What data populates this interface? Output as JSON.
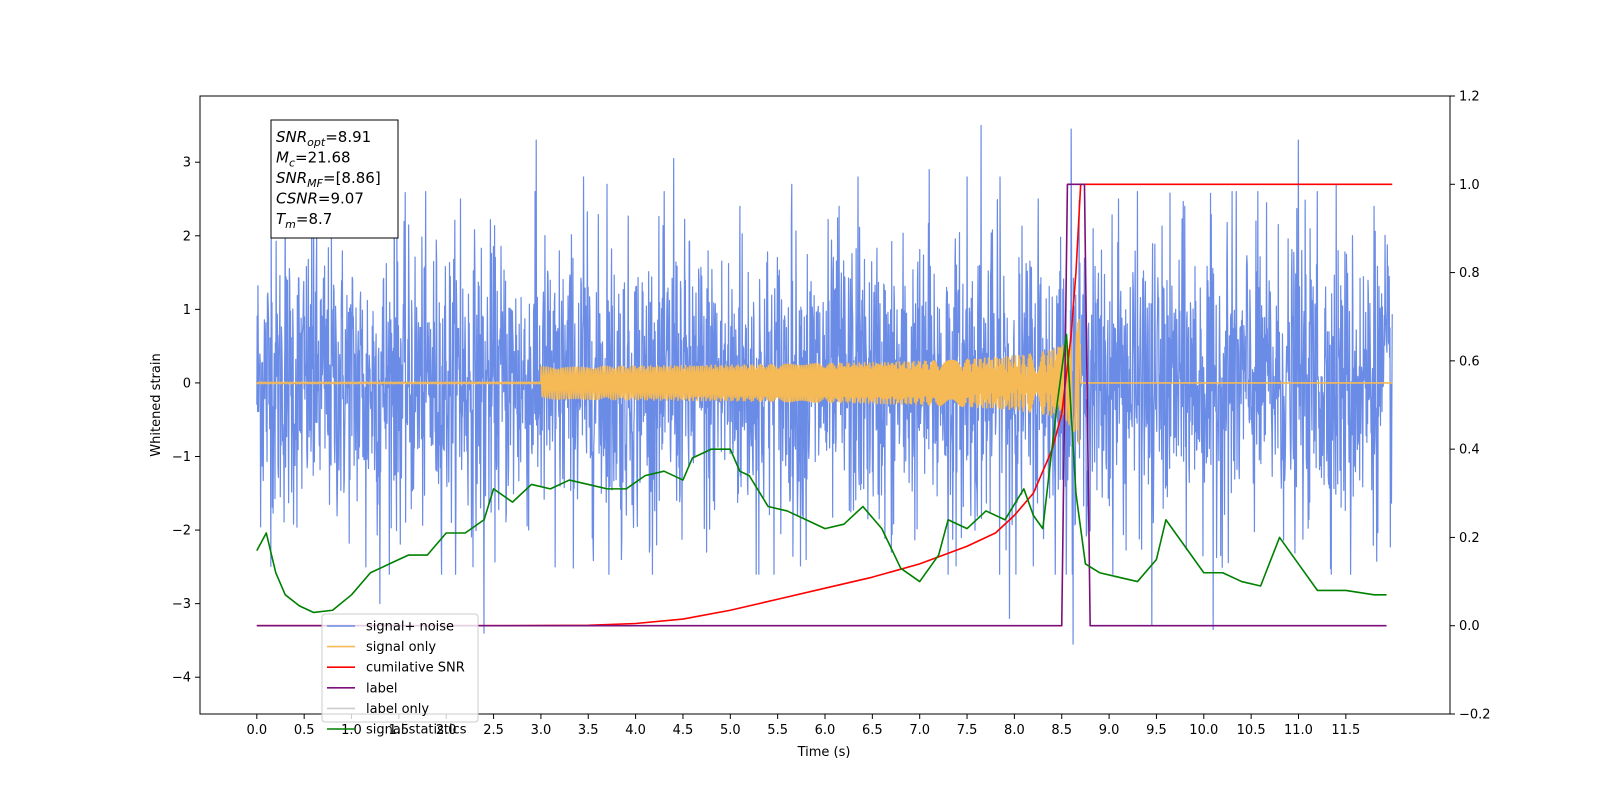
{
  "chart_data": {
    "type": "line",
    "xlabel": "Time (s)",
    "ylabel_left": "Whitened strain",
    "ylabel_right": "",
    "xlim": [
      -0.6,
      12.6
    ],
    "ylim_left": [
      -4.5,
      3.9
    ],
    "ylim_right": [
      -0.2,
      1.2
    ],
    "x_ticks": [
      0.0,
      0.5,
      1.0,
      1.5,
      2.0,
      2.5,
      3.0,
      3.5,
      4.0,
      4.5,
      5.0,
      5.5,
      6.0,
      6.5,
      7.0,
      7.5,
      8.0,
      8.5,
      9.0,
      9.5,
      10.0,
      10.5,
      11.0,
      11.5
    ],
    "x_tick_labels": [
      "0.0",
      "0.5",
      "1.0",
      "1.5",
      "2.0",
      "2.5",
      "3.0",
      "3.5",
      "4.0",
      "4.5",
      "5.0",
      "5.5",
      "6.0",
      "6.5",
      "7.0",
      "7.5",
      "8.0",
      "8.5",
      "9.0",
      "9.5",
      "10.0",
      "10.5",
      "11.0",
      "11.5"
    ],
    "y_ticks_left": [
      -4,
      -3,
      -2,
      -1,
      0,
      1,
      2,
      3
    ],
    "y_tick_labels_left": [
      "−4",
      "−3",
      "−2",
      "−1",
      "0",
      "1",
      "2",
      "3"
    ],
    "y_ticks_right": [
      -0.2,
      0.0,
      0.2,
      0.4,
      0.6,
      0.8,
      1.0,
      1.2
    ],
    "y_tick_labels_right": [
      "−0.2",
      "0.0",
      "0.2",
      "0.4",
      "0.6",
      "0.8",
      "1.0",
      "1.2"
    ],
    "grid": false,
    "legend_placement": "lower-left",
    "annotation": {
      "lines": [
        {
          "sym": "SNR",
          "sub": "opt",
          "val": "=8.91"
        },
        {
          "sym": "M",
          "sub": "c",
          "val": "=21.68"
        },
        {
          "sym": "SNR",
          "sub": "MF",
          "val": "=[8.86]"
        },
        {
          "sym": "CSNR",
          "sub": "",
          "val": "=9.07"
        },
        {
          "sym": "T",
          "sub": "m",
          "val": "=8.7"
        }
      ]
    },
    "series": [
      {
        "name": "signal+ noise",
        "color": "#6a8be6",
        "axis": "left",
        "kind": "noise",
        "x_range": [
          0.0,
          11.99
        ],
        "sigma": 0.95,
        "spikes": [
          [
            0.15,
            2.2
          ],
          [
            0.3,
            2.6
          ],
          [
            0.6,
            2.3
          ],
          [
            1.15,
            -2.5
          ],
          [
            1.3,
            -3.0
          ],
          [
            1.45,
            2.9
          ],
          [
            2.15,
            2.5
          ],
          [
            2.4,
            -3.4
          ],
          [
            2.95,
            3.3
          ],
          [
            3.15,
            -2.5
          ],
          [
            3.45,
            2.8
          ],
          [
            3.7,
            2.7
          ],
          [
            3.85,
            -2.4
          ],
          [
            4.15,
            -2.2
          ],
          [
            4.4,
            3.05
          ],
          [
            4.75,
            -2.3
          ],
          [
            5.1,
            2.4
          ],
          [
            5.3,
            -2.6
          ],
          [
            5.65,
            2.7
          ],
          [
            5.8,
            -2.4
          ],
          [
            6.15,
            2.4
          ],
          [
            6.35,
            2.8
          ],
          [
            6.7,
            -2.3
          ],
          [
            7.1,
            2.9
          ],
          [
            7.3,
            -2.6
          ],
          [
            7.5,
            2.8
          ],
          [
            7.65,
            3.5
          ],
          [
            7.85,
            2.8
          ],
          [
            7.95,
            -3.2
          ],
          [
            8.25,
            2.5
          ],
          [
            8.6,
            3.45
          ],
          [
            8.62,
            -3.55
          ],
          [
            9.1,
            2.5
          ],
          [
            9.45,
            -3.3
          ],
          [
            9.8,
            2.4
          ],
          [
            10.1,
            -3.35
          ],
          [
            10.3,
            2.6
          ],
          [
            10.55,
            2.2
          ],
          [
            11.0,
            3.3
          ],
          [
            11.2,
            2.6
          ],
          [
            11.4,
            2.7
          ],
          [
            11.55,
            -2.6
          ],
          [
            11.8,
            2.4
          ]
        ]
      },
      {
        "name": "signal only",
        "color": "#f5b955",
        "axis": "left",
        "kind": "chirp",
        "x_range": [
          0.0,
          11.99
        ],
        "t_merger": 8.7,
        "peak_amplitude": 0.9
      },
      {
        "name": "cumilative SNR",
        "color": "#ff0000",
        "axis": "right",
        "x": [
          0.0,
          2.5,
          3.5,
          4.0,
          4.5,
          5.0,
          5.5,
          6.0,
          6.5,
          7.0,
          7.5,
          7.8,
          8.0,
          8.2,
          8.4,
          8.5,
          8.6,
          8.65,
          8.7,
          11.99
        ],
        "y": [
          0.0,
          0.0,
          0.001,
          0.005,
          0.015,
          0.035,
          0.06,
          0.085,
          0.11,
          0.14,
          0.18,
          0.21,
          0.25,
          0.3,
          0.4,
          0.48,
          0.66,
          0.8,
          1.0,
          1.0
        ]
      },
      {
        "name": "label",
        "color": "#7b0f7b",
        "axis": "right",
        "x": [
          0.0,
          8.5,
          8.56,
          8.74,
          8.8,
          11.93
        ],
        "y": [
          0.0,
          0.0,
          1.0,
          1.0,
          0.0,
          0.0
        ]
      },
      {
        "name": "label only",
        "color": "#cccccc",
        "axis": "right",
        "legend_only": true,
        "x": [],
        "y": []
      },
      {
        "name": "signal statistics",
        "color": "#008000",
        "axis": "right",
        "x": [
          0.0,
          0.1,
          0.2,
          0.3,
          0.45,
          0.6,
          0.8,
          1.0,
          1.2,
          1.4,
          1.6,
          1.8,
          2.0,
          2.2,
          2.4,
          2.5,
          2.7,
          2.9,
          3.1,
          3.3,
          3.5,
          3.7,
          3.9,
          4.1,
          4.3,
          4.5,
          4.6,
          4.8,
          5.0,
          5.1,
          5.2,
          5.4,
          5.6,
          5.8,
          6.0,
          6.2,
          6.4,
          6.6,
          6.8,
          7.0,
          7.2,
          7.3,
          7.5,
          7.7,
          7.9,
          8.1,
          8.2,
          8.3,
          8.45,
          8.55,
          8.65,
          8.75,
          8.9,
          9.1,
          9.3,
          9.5,
          9.6,
          9.8,
          10.0,
          10.2,
          10.4,
          10.6,
          10.8,
          11.0,
          11.2,
          11.5,
          11.8,
          11.93
        ],
        "y": [
          0.17,
          0.21,
          0.12,
          0.07,
          0.045,
          0.03,
          0.035,
          0.07,
          0.12,
          0.14,
          0.16,
          0.16,
          0.21,
          0.21,
          0.24,
          0.31,
          0.28,
          0.32,
          0.31,
          0.33,
          0.32,
          0.31,
          0.31,
          0.34,
          0.35,
          0.33,
          0.38,
          0.4,
          0.4,
          0.35,
          0.34,
          0.27,
          0.26,
          0.24,
          0.22,
          0.23,
          0.27,
          0.22,
          0.13,
          0.1,
          0.16,
          0.24,
          0.22,
          0.26,
          0.24,
          0.31,
          0.25,
          0.22,
          0.5,
          0.66,
          0.3,
          0.14,
          0.12,
          0.11,
          0.1,
          0.15,
          0.24,
          0.18,
          0.12,
          0.12,
          0.1,
          0.09,
          0.2,
          0.14,
          0.08,
          0.08,
          0.07,
          0.07
        ]
      }
    ]
  }
}
